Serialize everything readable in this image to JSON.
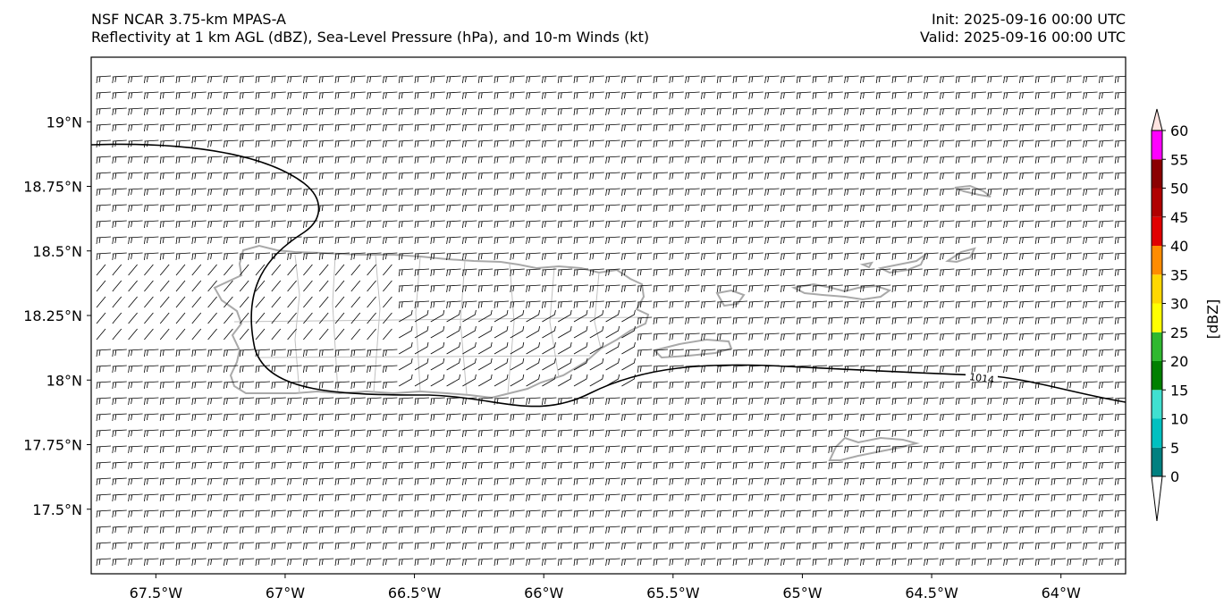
{
  "header": {
    "line1": "NSF NCAR 3.75-km MPAS-A",
    "line2": "Reflectivity at 1 km AGL (dBZ), Sea-Level Pressure (hPa), and 10-m Winds (kt)",
    "init": "Init: 2025-09-16 00:00 UTC",
    "valid": "Valid: 2025-09-16 00:00 UTC"
  },
  "map": {
    "lon_range": [
      -67.75,
      -63.75
    ],
    "lat_range": [
      17.25,
      19.25
    ],
    "lon_ticks": [
      {
        "value": -67.5,
        "label": "67.5°W"
      },
      {
        "value": -67.0,
        "label": "67°W"
      },
      {
        "value": -66.5,
        "label": "66.5°W"
      },
      {
        "value": -66.0,
        "label": "66°W"
      },
      {
        "value": -65.5,
        "label": "65.5°W"
      },
      {
        "value": -65.0,
        "label": "65°W"
      },
      {
        "value": -64.5,
        "label": "64.5°W"
      },
      {
        "value": -64.0,
        "label": "64°W"
      }
    ],
    "lat_ticks": [
      {
        "value": 19.0,
        "label": "19°N"
      },
      {
        "value": 18.75,
        "label": "18.75°N"
      },
      {
        "value": 18.5,
        "label": "18.5°N"
      },
      {
        "value": 18.25,
        "label": "18.25°N"
      },
      {
        "value": 18.0,
        "label": "18°N"
      },
      {
        "value": 17.75,
        "label": "17.75°N"
      },
      {
        "value": 17.5,
        "label": "17.5°N"
      }
    ],
    "isobar_label": "1014",
    "coast_color": "#a9a9a9"
  },
  "colorbar": {
    "label": "[dBZ]",
    "levels": [
      {
        "value": 0,
        "label": "0",
        "color": "#008080"
      },
      {
        "value": 5,
        "label": "5",
        "color": "#00c0c0"
      },
      {
        "value": 10,
        "label": "10",
        "color": "#40e0d0"
      },
      {
        "value": 15,
        "label": "15",
        "color": "#008000"
      },
      {
        "value": 20,
        "label": "20",
        "color": "#2fb82f"
      },
      {
        "value": 25,
        "label": "25",
        "color": "#ffff00"
      },
      {
        "value": 30,
        "label": "30",
        "color": "#ffd700"
      },
      {
        "value": 35,
        "label": "35",
        "color": "#ff8c00"
      },
      {
        "value": 40,
        "label": "40",
        "color": "#e00000"
      },
      {
        "value": 45,
        "label": "45",
        "color": "#b00000"
      },
      {
        "value": 50,
        "label": "50",
        "color": "#8b0000"
      },
      {
        "value": 55,
        "label": "55",
        "color": "#ff00ff"
      },
      {
        "value": 60,
        "label": "60",
        "color": "#ffe4e1"
      }
    ]
  }
}
